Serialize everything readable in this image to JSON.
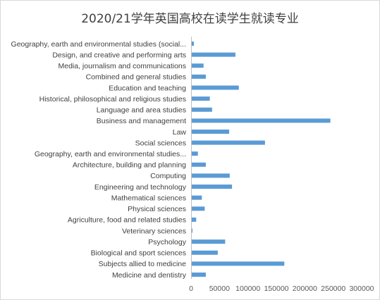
{
  "chart_data": {
    "type": "bar",
    "orientation": "horizontal",
    "title": "2020/21学年英国高校在读学生就读专业",
    "xlabel": "",
    "ylabel": "",
    "xlim": [
      0,
      300000
    ],
    "x_ticks": [
      0,
      50000,
      100000,
      150000,
      200000,
      250000,
      300000
    ],
    "x_tick_labels": [
      "0",
      "50000",
      "100000",
      "150000",
      "200000",
      "250000",
      "300000"
    ],
    "grid": false,
    "legend": "none",
    "bar_color": "#5b9bd5",
    "categories": [
      "Geography, earth and environmental studies (social...",
      "Design, and creative and performing arts",
      "Media, journalism and communications",
      "Combined and general studies",
      "Education and teaching",
      "Historical, philosophical and religious studies",
      "Language and area studies",
      "Business and management",
      "Law",
      "Social sciences",
      "Geography, earth and environmental studies...",
      "Architecture, building and planning",
      "Computing",
      "Engineering and technology",
      "Mathematical sciences",
      "Physical sciences",
      "Agriculture, food and related studies",
      "Veterinary sciences",
      "Psychology",
      "Biological and sport sciences",
      "Subjects allied to medicine",
      "Medicine and dentistry"
    ],
    "values": [
      5000,
      78000,
      22000,
      26000,
      84000,
      33000,
      37000,
      245000,
      67000,
      130000,
      12000,
      26000,
      68000,
      72000,
      19000,
      24000,
      9000,
      2000,
      60000,
      47000,
      164000,
      26000
    ]
  }
}
